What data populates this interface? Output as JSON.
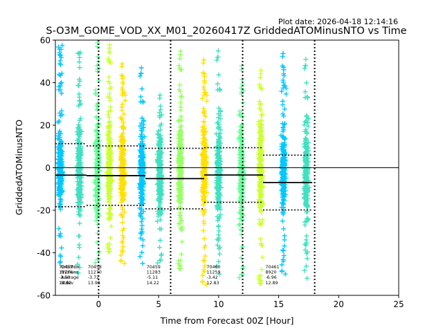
{
  "header": {
    "plot_date": "Plot date: 2026-04-18 12:14:16",
    "title": "S-O3M_GOME_VOD_XX_M01_20260417Z GriddedATOMinusNTO vs Time"
  },
  "chart_data": {
    "type": "scatter",
    "title": "S-O3M_GOME_VOD_XX_M01_20260417Z GriddedATOMinusNTO vs Time",
    "xlabel": "Time from Forecast 00Z [Hour]",
    "ylabel": "GriddedATOMinusNTO",
    "xlim": [
      -3.6,
      25
    ],
    "ylim": [
      -60,
      60
    ],
    "xticks": [
      0,
      5,
      10,
      15,
      20,
      25
    ],
    "yticks": [
      -60,
      -40,
      -20,
      0,
      20,
      40,
      60
    ],
    "marker": "+",
    "zero_line": 0,
    "cycle_boundaries": [
      0,
      6,
      12,
      18
    ],
    "orbit_clusters": [
      {
        "x": -3.2,
        "color": "#00c8ff",
        "y_min": -45,
        "y_max": 58,
        "spread_low": -12,
        "spread_high": 10
      },
      {
        "x": -1.6,
        "color": "#40e0c0",
        "y_min": -50,
        "y_max": 58,
        "spread_low": -14,
        "spread_high": 12
      },
      {
        "x": -0.1,
        "color": "#66ff99",
        "y_min": -45,
        "y_max": 60,
        "spread_low": -15,
        "spread_high": 14
      },
      {
        "x": 0.9,
        "color": "#ccff33",
        "y_min": -40,
        "y_max": 58,
        "spread_low": -14,
        "spread_high": 14
      },
      {
        "x": 2.0,
        "color": "#ffe000",
        "y_min": -45,
        "y_max": 50,
        "spread_low": -14,
        "spread_high": 12
      },
      {
        "x": 3.6,
        "color": "#00c8ff",
        "y_min": -45,
        "y_max": 47,
        "spread_low": -12,
        "spread_high": 10
      },
      {
        "x": 5.1,
        "color": "#40e0c0",
        "y_min": -45,
        "y_max": 35,
        "spread_low": -14,
        "spread_high": 12
      },
      {
        "x": 6.8,
        "color": "#99ff66",
        "y_min": -48,
        "y_max": 55,
        "spread_low": -15,
        "spread_high": 14
      },
      {
        "x": 8.8,
        "color": "#ffe000",
        "y_min": -55,
        "y_max": 52,
        "spread_low": -14,
        "spread_high": 13
      },
      {
        "x": 10.0,
        "color": "#40e0c0",
        "y_min": -50,
        "y_max": 55,
        "spread_low": -14,
        "spread_high": 12
      },
      {
        "x": 11.9,
        "color": "#66ff99",
        "y_min": -52,
        "y_max": 49,
        "spread_low": -15,
        "spread_high": 12
      },
      {
        "x": 13.5,
        "color": "#ccff33",
        "y_min": -55,
        "y_max": 46,
        "spread_low": -15,
        "spread_high": 14
      },
      {
        "x": 15.4,
        "color": "#00c8ff",
        "y_min": -50,
        "y_max": 55,
        "spread_low": -12,
        "spread_high": 10
      },
      {
        "x": 17.3,
        "color": "#40e0c0",
        "y_min": -52,
        "y_max": 51,
        "spread_low": -14,
        "spread_high": 12
      }
    ],
    "segments": [
      {
        "x0": -3.6,
        "x1": -1.0,
        "mean": -3.5,
        "avg_plus_sd": 11.32,
        "avg_minus_sd": -18.32
      },
      {
        "x0": -1.0,
        "x1": 3.9,
        "mean": -3.72,
        "avg_plus_sd": 10.26,
        "avg_minus_sd": -17.7
      },
      {
        "x0": 3.9,
        "x1": 8.8,
        "mean": -5.11,
        "avg_plus_sd": 9.11,
        "avg_minus_sd": -19.33
      },
      {
        "x0": 8.8,
        "x1": 13.7,
        "mean": -3.42,
        "avg_plus_sd": 9.41,
        "avg_minus_sd": -16.25
      },
      {
        "x0": 13.7,
        "x1": 17.8,
        "mean": -6.96,
        "avg_plus_sd": 5.93,
        "avg_minus_sd": -19.85
      }
    ],
    "stats_legend": [
      "OrbitNbr",
      "NValues",
      "Average",
      "Stdev"
    ],
    "orbit_stats": [
      {
        "x": -3.3,
        "orbit": "70457",
        "nvalues": "11274",
        "average": "-3.50",
        "stdev": "14.82"
      },
      {
        "x": -0.9,
        "orbit": "70458",
        "nvalues": "11270",
        "average": "-3.72",
        "stdev": "13.98"
      },
      {
        "x": 4.0,
        "orbit": "70459",
        "nvalues": "11283",
        "average": "-5.11",
        "stdev": "14.22"
      },
      {
        "x": 9.0,
        "orbit": "70460",
        "nvalues": "11259",
        "average": "-3.42",
        "stdev": "12.83"
      },
      {
        "x": 13.9,
        "orbit": "70461",
        "nvalues": "8920",
        "average": "-6.96",
        "stdev": "12.89"
      }
    ]
  }
}
